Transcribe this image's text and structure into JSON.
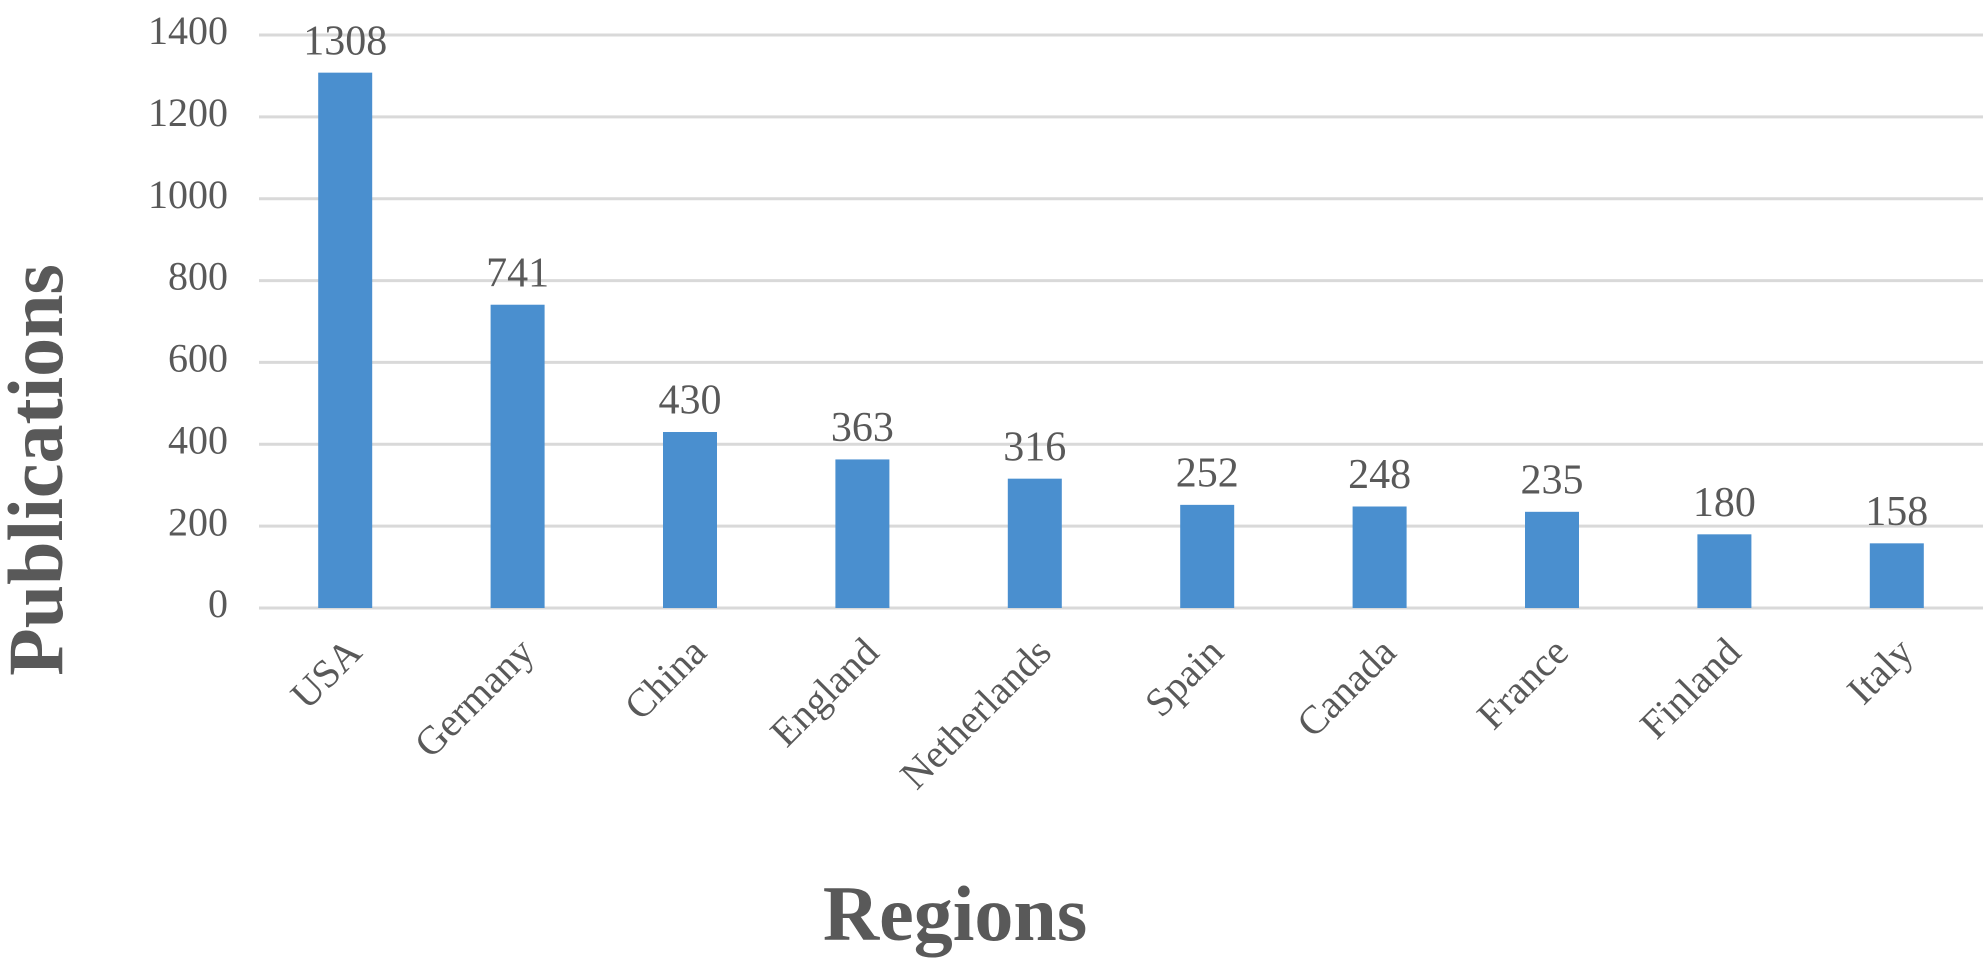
{
  "chart_data": {
    "type": "bar",
    "x_label": "Regions",
    "y_label": "Publications",
    "categories": [
      "USA",
      "Germany",
      "China",
      "England",
      "Netherlands",
      "Spain",
      "Canada",
      "France",
      "Finland",
      "Italy"
    ],
    "values": [
      1308,
      741,
      430,
      363,
      316,
      252,
      248,
      235,
      180,
      158
    ],
    "color": "#4a8fcf",
    "ylim": [
      0,
      1400
    ],
    "yticks": [
      0,
      200,
      400,
      600,
      800,
      1000,
      1200,
      1400
    ],
    "grid": true
  }
}
